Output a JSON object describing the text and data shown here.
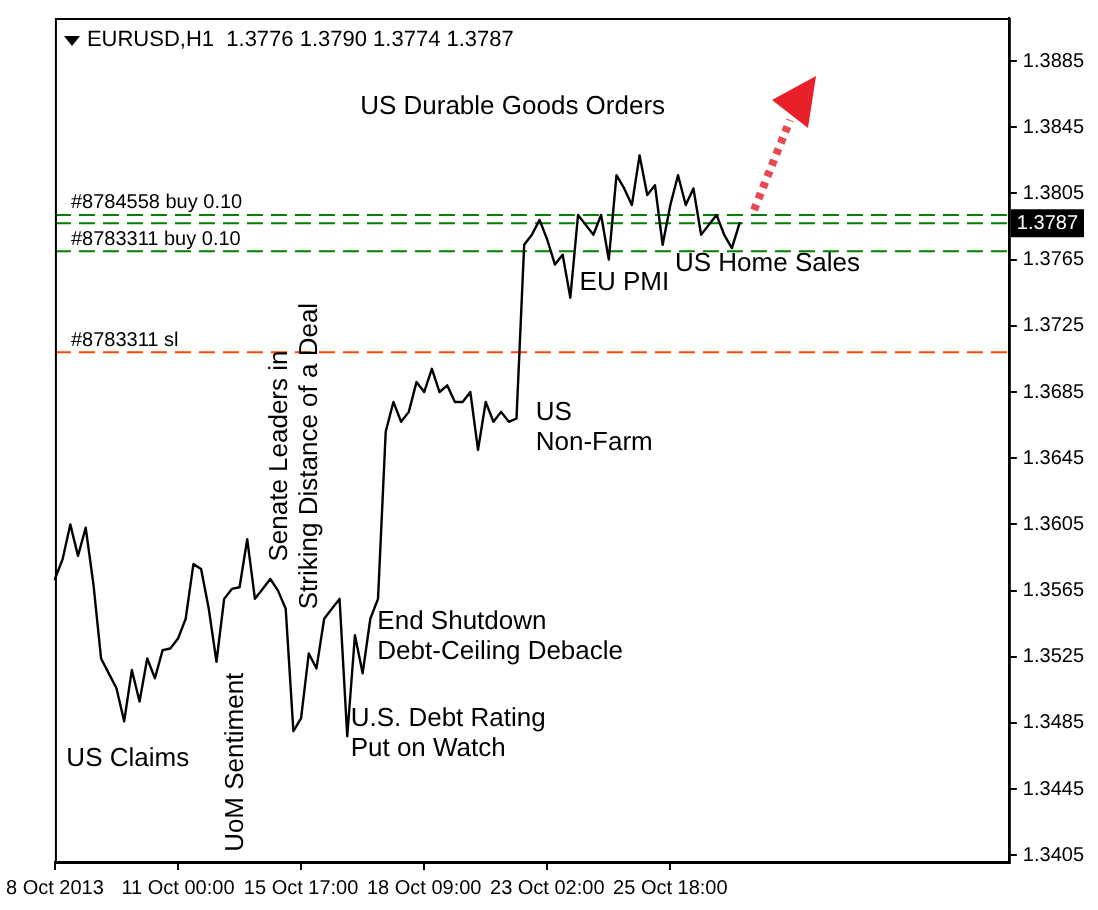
{
  "chart_data": {
    "type": "line",
    "title": "EURUSD,H1  1.3776 1.3790 1.3774 1.3787",
    "color": "#000000",
    "marker": "none",
    "line_style": "solid",
    "legend": false,
    "grid": false,
    "categories": [
      "8 Oct 2013",
      null,
      null,
      null,
      null,
      null,
      null,
      null,
      null,
      null,
      null,
      null,
      null,
      null,
      null,
      null,
      "11 Oct 00:00",
      null,
      null,
      null,
      null,
      null,
      null,
      null,
      null,
      null,
      null,
      null,
      null,
      null,
      null,
      null,
      "15 Oct 17:00",
      null,
      null,
      null,
      null,
      null,
      null,
      null,
      null,
      null,
      null,
      null,
      null,
      null,
      null,
      null,
      "18 Oct 09:00",
      null,
      null,
      null,
      null,
      null,
      null,
      null,
      null,
      null,
      null,
      null,
      null,
      null,
      null,
      null,
      "23 Oct 02:00",
      null,
      null,
      null,
      null,
      null,
      null,
      null,
      null,
      null,
      null,
      null,
      null,
      null,
      null,
      null,
      "25 Oct 18:00",
      null,
      null,
      null,
      null,
      null,
      null,
      null,
      null,
      null,
      null,
      null,
      null,
      null,
      null,
      null,
      null,
      null,
      null,
      null,
      null,
      null,
      null,
      null,
      null,
      null,
      null,
      null,
      null,
      null,
      null,
      null,
      null,
      null,
      null,
      null,
      null,
      null,
      null,
      null,
      null,
      null,
      null,
      null,
      null
    ],
    "values": [
      1.3572,
      1.3584,
      1.3605,
      1.3586,
      1.3603,
      1.3569,
      1.3524,
      1.3515,
      1.3506,
      1.3486,
      1.3517,
      1.3498,
      1.3524,
      1.3512,
      1.3529,
      1.353,
      1.3536,
      1.3548,
      1.3581,
      1.3578,
      1.3554,
      1.3522,
      1.356,
      1.3566,
      1.3567,
      1.3596,
      1.356,
      1.3566,
      1.3572,
      1.3565,
      1.3554,
      1.348,
      1.3488,
      1.3527,
      1.3518,
      1.3548,
      1.3554,
      1.356,
      1.3477,
      1.3538,
      1.3515,
      1.3548,
      1.356,
      1.3661,
      1.3679,
      1.3667,
      1.3673,
      1.3691,
      1.3685,
      1.3699,
      1.3685,
      1.3689,
      1.3679,
      1.3679,
      1.3685,
      1.365,
      1.3679,
      1.3667,
      1.3673,
      1.3667,
      1.3669,
      1.3774,
      1.378,
      1.3789,
      1.3777,
      1.3762,
      1.3768,
      1.3742,
      1.3792,
      1.3786,
      1.378,
      1.3792,
      1.3765,
      1.3816,
      1.3808,
      1.3798,
      1.3828,
      1.3804,
      1.381,
      1.3774,
      1.3798,
      1.3816,
      1.3798,
      1.3808,
      1.378,
      1.3786,
      1.3792,
      1.378,
      1.3772,
      1.3787,
      null,
      null,
      null,
      null,
      null,
      null,
      null,
      null,
      null,
      null,
      null,
      null,
      null,
      null,
      null,
      null,
      null,
      null,
      null,
      null,
      null,
      null,
      null,
      null,
      null,
      null,
      null,
      null,
      null,
      null,
      null,
      null,
      null,
      null,
      null
    ],
    "ylim": [
      1.3401,
      1.3911
    ],
    "yticks": [
      1.3405,
      1.3445,
      1.3485,
      1.3525,
      1.3565,
      1.3605,
      1.3645,
      1.3685,
      1.3725,
      1.3765,
      1.3805,
      1.3845,
      1.3885
    ],
    "ref_lines": [
      {
        "axis": "y",
        "value": 1.3792,
        "label": "#8784558 buy 0.10",
        "color": "#008000",
        "line_style": "dashed"
      },
      {
        "axis": "y",
        "value": 1.3787,
        "label": "1.3787",
        "color": "#008000",
        "line_style": "dashed"
      },
      {
        "axis": "y",
        "value": 1.377,
        "label": "#8783311 buy 0.10",
        "color": "#008000",
        "line_style": "dashed"
      },
      {
        "axis": "y",
        "value": 1.3709,
        "label": "#8783311 sl",
        "color": "#ff4500",
        "line_style": "dashed"
      }
    ],
    "annotations": [
      "US Durable Goods Orders",
      "EU PMI",
      "US Home Sales",
      "US\nNon-Farm",
      "End Shutdown\nDebt-Ceiling Debacle",
      "U.S. Debt Rating\nPut on Watch",
      "US Claims",
      "UoM Sentiment",
      "Senate Leaders in\nStriking Distance of a Deal"
    ]
  }
}
